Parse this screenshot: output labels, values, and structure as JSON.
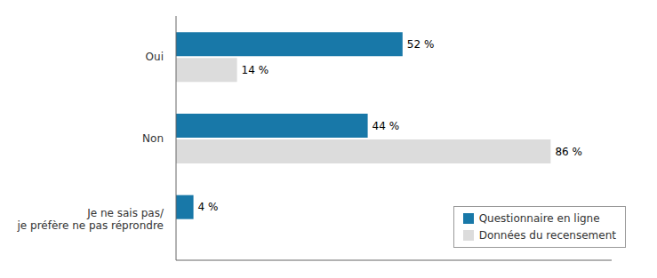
{
  "chart_data": {
    "type": "bar",
    "orientation": "horizontal",
    "categories": [
      "Oui",
      "Non",
      "Je ne sais pas/\nje préfère ne pas réprondre"
    ],
    "series": [
      {
        "name": "Questionnaire en ligne",
        "color": "#1878a8",
        "values": [
          52,
          44,
          4
        ],
        "value_labels": [
          "52 %",
          "44 %",
          "4 %"
        ]
      },
      {
        "name": "Données du recensement",
        "color": "#dcdcdc",
        "values": [
          14,
          86,
          0
        ],
        "value_labels": [
          "14 %",
          "86 %",
          null
        ]
      }
    ],
    "xlim": [
      0,
      100
    ],
    "data_labels": true,
    "tick_labels": "y",
    "grid": false,
    "legend": "lower right"
  }
}
